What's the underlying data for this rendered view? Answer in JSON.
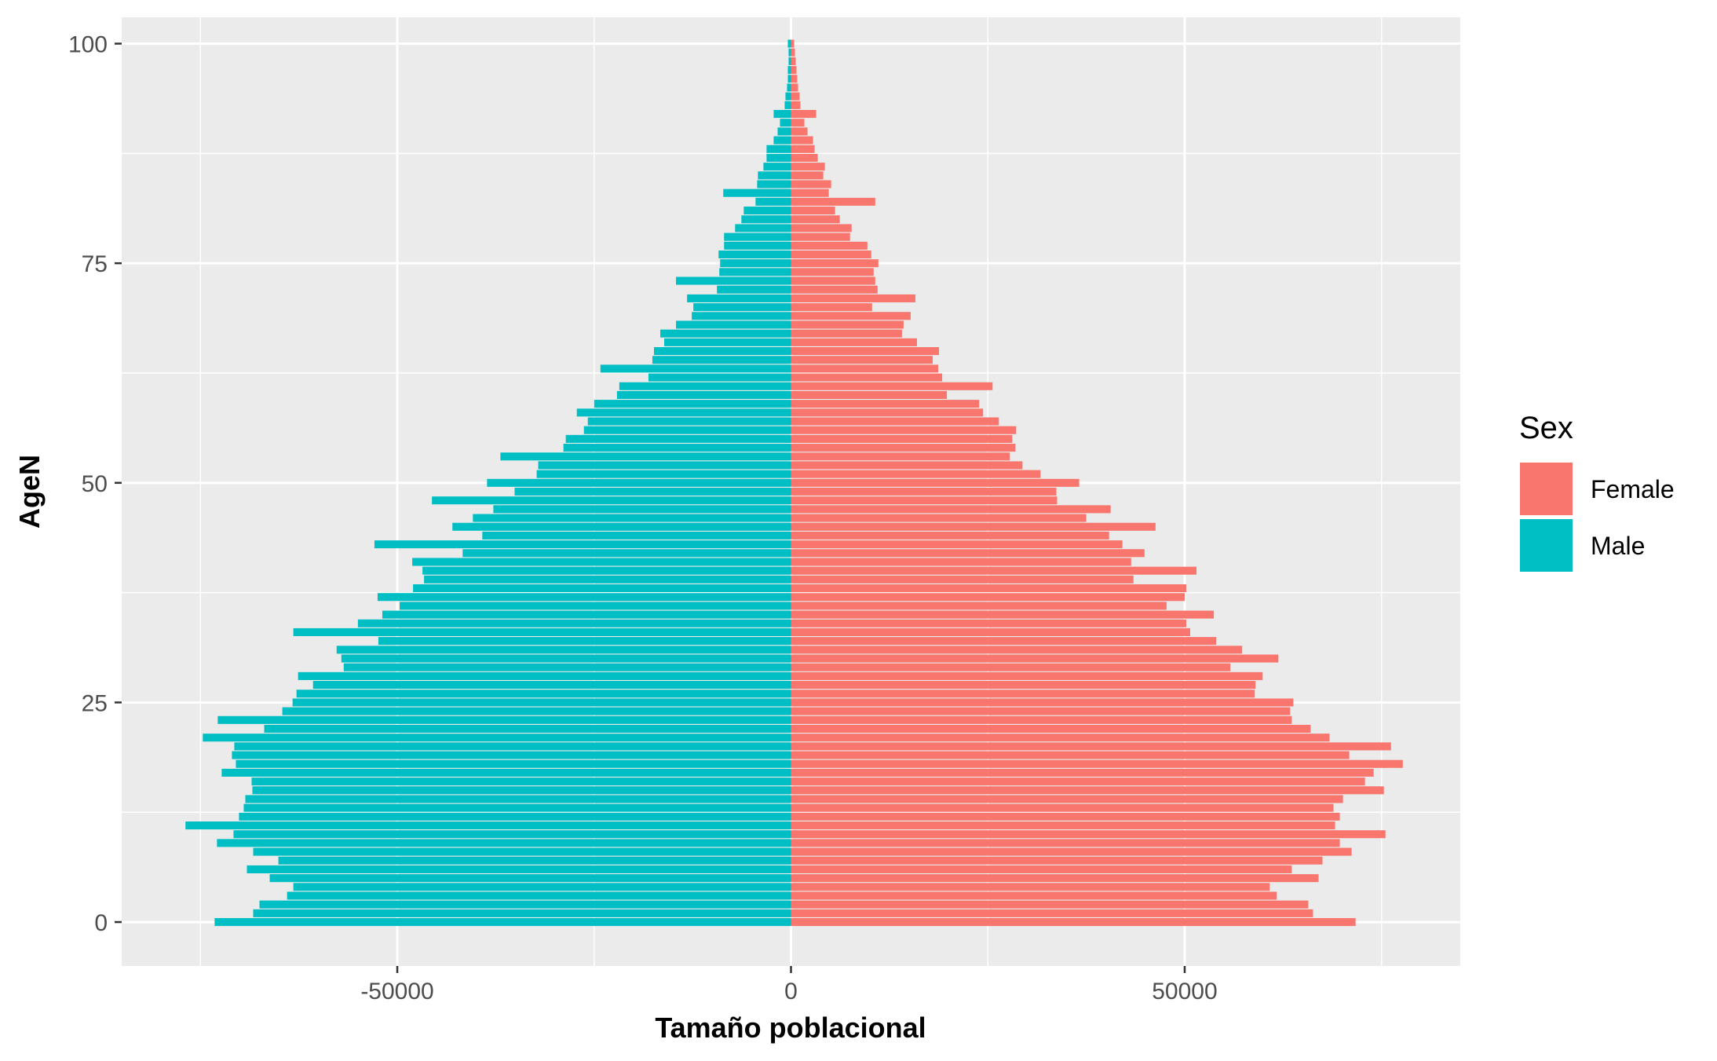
{
  "chart_data": {
    "type": "bar",
    "orientation": "horizontal",
    "title": "",
    "xlabel": "Tamaño poblacional",
    "ylabel": "AgeN",
    "xlim": [
      -85000,
      85000
    ],
    "ylim": [
      -5,
      103
    ],
    "x_ticks": [
      -50000,
      0,
      50000
    ],
    "x_tick_labels": [
      "-50000",
      "0",
      "50000"
    ],
    "y_ticks": [
      0,
      25,
      50,
      75,
      100
    ],
    "y_tick_labels": [
      "0",
      "25",
      "50",
      "75",
      "100"
    ],
    "grid": true,
    "legend": {
      "title": "Sex",
      "position": "right",
      "entries": [
        {
          "label": "Female",
          "color": "#F8766D"
        },
        {
          "label": "Male",
          "color": "#00BFC4"
        }
      ]
    },
    "ages": [
      0,
      1,
      2,
      3,
      4,
      5,
      6,
      7,
      8,
      9,
      10,
      11,
      12,
      13,
      14,
      15,
      16,
      17,
      18,
      19,
      20,
      21,
      22,
      23,
      24,
      25,
      26,
      27,
      28,
      29,
      30,
      31,
      32,
      33,
      34,
      35,
      36,
      37,
      38,
      39,
      40,
      41,
      42,
      43,
      44,
      45,
      46,
      47,
      48,
      49,
      50,
      51,
      52,
      53,
      54,
      55,
      56,
      57,
      58,
      59,
      60,
      61,
      62,
      63,
      64,
      65,
      66,
      67,
      68,
      69,
      70,
      71,
      72,
      73,
      74,
      75,
      76,
      77,
      78,
      79,
      80,
      81,
      82,
      83,
      84,
      85,
      86,
      87,
      88,
      89,
      90,
      91,
      92,
      93,
      94,
      95,
      96,
      97,
      98,
      99,
      100
    ],
    "series": [
      {
        "name": "Female",
        "color": "#F8766D",
        "values": [
          71700,
          66300,
          65700,
          61700,
          60800,
          67000,
          63600,
          67500,
          71200,
          69700,
          75500,
          69100,
          69700,
          68900,
          70100,
          75300,
          72900,
          74000,
          77700,
          70900,
          76200,
          68400,
          66000,
          63600,
          63400,
          63800,
          58900,
          59000,
          59900,
          55800,
          61900,
          57300,
          54000,
          50700,
          50200,
          53700,
          47700,
          50000,
          50200,
          43500,
          51500,
          43200,
          44900,
          42100,
          40400,
          46300,
          37500,
          40600,
          33800,
          33700,
          36600,
          31700,
          29400,
          27800,
          28500,
          28100,
          28600,
          26400,
          24400,
          23900,
          19800,
          25600,
          19200,
          18700,
          18000,
          18800,
          16000,
          14100,
          14300,
          15200,
          10300,
          15800,
          11000,
          10700,
          10500,
          11100,
          10200,
          9700,
          7500,
          7700,
          6200,
          5600,
          10700,
          4800,
          5100,
          4100,
          4300,
          3400,
          3000,
          2800,
          2100,
          1700,
          3200,
          1200,
          1100,
          900,
          800,
          700,
          600,
          500,
          400
        ]
      },
      {
        "name": "Male",
        "color": "#00BFC4",
        "values": [
          -73200,
          -68300,
          -67500,
          -64000,
          -63200,
          -66200,
          -69100,
          -65100,
          -68300,
          -72900,
          -70800,
          -76900,
          -70100,
          -69500,
          -69300,
          -68400,
          -68500,
          -72300,
          -70500,
          -71000,
          -70700,
          -74700,
          -66900,
          -72800,
          -64600,
          -63300,
          -62800,
          -60700,
          -62600,
          -56800,
          -57100,
          -57700,
          -52400,
          -63200,
          -55000,
          -51900,
          -49700,
          -52500,
          -48000,
          -46600,
          -46800,
          -48100,
          -41700,
          -52900,
          -39200,
          -43000,
          -40400,
          -37800,
          -45600,
          -35100,
          -38600,
          -32300,
          -32100,
          -36900,
          -28900,
          -28600,
          -26300,
          -25800,
          -27200,
          -25000,
          -22100,
          -21800,
          -18100,
          -24200,
          -17600,
          -17400,
          -16100,
          -16600,
          -14600,
          -12600,
          -12400,
          -13200,
          -9400,
          -14600,
          -9100,
          -9000,
          -9200,
          -8500,
          -8500,
          -7100,
          -6300,
          -6000,
          -4500,
          -8600,
          -4300,
          -4200,
          -3500,
          -3100,
          -3100,
          -2200,
          -1700,
          -1400,
          -2200,
          -800,
          -700,
          -500,
          -400,
          -400,
          -300,
          -300,
          -400
        ]
      }
    ]
  }
}
